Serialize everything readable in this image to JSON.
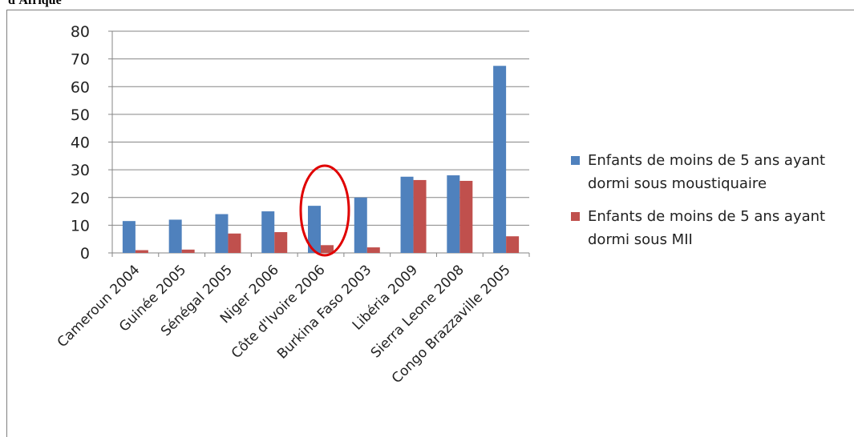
{
  "chart_data": {
    "type": "bar",
    "title": "d'Afrique",
    "categories": [
      "Cameroun 2004",
      "Guinée 2005",
      "Sénégal 2005",
      "Niger 2006",
      "Côte d'Ivoire 2006",
      "Burkina Faso 2003",
      "Libéria 2009",
      "Sierra Leone 2008",
      "Congo Brazzaville 2005"
    ],
    "series": [
      {
        "name": "Enfants de moins de 5 ans ayant dormi sous moustiquaire",
        "color": "#4f81bd",
        "values": [
          11.5,
          12,
          14,
          15,
          17,
          20,
          27.5,
          28,
          67.5
        ]
      },
      {
        "name": "Enfants de moins de 5 ans ayant dormi sous MII",
        "color": "#c0504d",
        "values": [
          1,
          1.2,
          7,
          7.5,
          2.8,
          2,
          26.3,
          26,
          6
        ]
      }
    ],
    "ylim": [
      0,
      80
    ],
    "yticks": [
      0,
      10,
      20,
      30,
      40,
      50,
      60,
      70,
      80
    ],
    "grid": true,
    "legend": "right"
  }
}
